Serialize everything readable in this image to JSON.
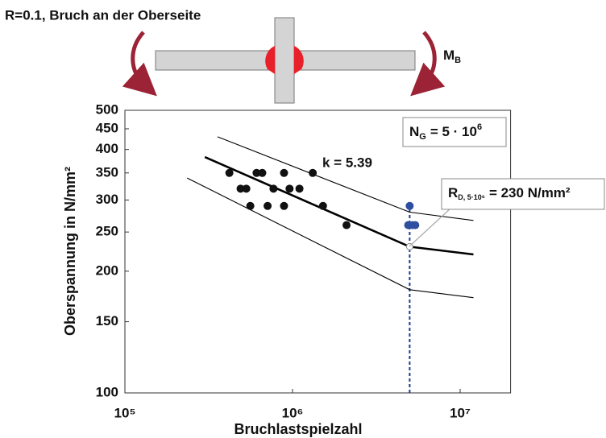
{
  "title": "R=0.1, Bruch an der Oberseite",
  "moment": {
    "main": "M",
    "sub": "B"
  },
  "chart_data": {
    "type": "scatter",
    "x_label": "Bruchlastspielzahl",
    "y_label": "Oberspannung in N/mm²",
    "xscale": "log",
    "yscale": "log",
    "xlim": [
      100000,
      20000000
    ],
    "ylim": [
      100,
      500
    ],
    "xticks": [
      {
        "value": 100000,
        "label": "10⁵"
      },
      {
        "value": 1000000,
        "label": "10⁶"
      },
      {
        "value": 10000000,
        "label": "10⁷"
      }
    ],
    "yticks": [
      100,
      150,
      200,
      250,
      300,
      350,
      400,
      450,
      500
    ],
    "points": {
      "color": "#111111",
      "x": [
        420000,
        490000,
        530000,
        560000,
        610000,
        660000,
        710000,
        770000,
        890000,
        890000,
        960000,
        1100000,
        1320000,
        1520000,
        2100000
      ],
      "y": [
        350,
        320,
        320,
        290,
        350,
        350,
        290,
        320,
        350,
        290,
        320,
        320,
        350,
        290,
        260
      ]
    },
    "runouts": {
      "color": "#2e4fa0",
      "x": [
        5000000,
        4900000,
        5200000,
        5400000
      ],
      "y": [
        290,
        260,
        260,
        260
      ]
    },
    "lines": [
      {
        "color": "#000000",
        "width": 2.6,
        "x": [
          300000,
          5000000,
          12000000
        ],
        "values": [
          383,
          230,
          220
        ]
      },
      {
        "color": "#000000",
        "width": 1.1,
        "x": [
          357000,
          5000000,
          12000000
        ],
        "values": [
          430,
          280,
          267
        ]
      },
      {
        "color": "#000000",
        "width": 1.1,
        "x": [
          235000,
          5000000,
          12000000
        ],
        "values": [
          340,
          180,
          172
        ]
      }
    ],
    "cycle_limit": 5000000,
    "limit_color": "#1f3a93",
    "annotations": {
      "slope": "k = 5.39",
      "ng": {
        "main": "N",
        "sub": "G",
        "rest": "= 5 · 10",
        "sup": "6"
      },
      "rd": {
        "main": "R",
        "sub": "D, 5·10⁶",
        "rest": "= 230 N/mm²"
      }
    }
  }
}
